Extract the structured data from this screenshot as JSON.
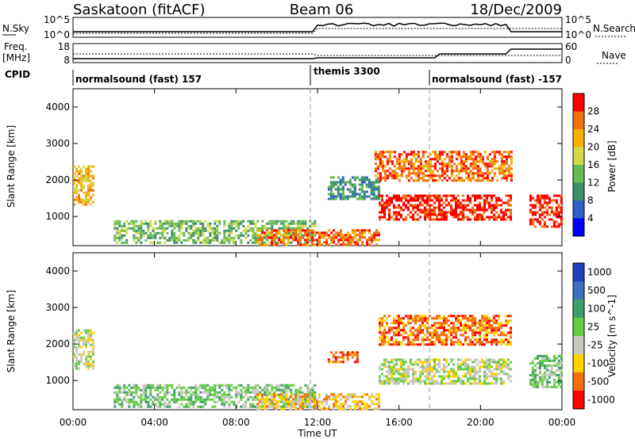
{
  "chart_data": {
    "type": "heatmap",
    "header": {
      "station": "Saskatoon (fitACF)",
      "beam": "Beam 06",
      "date": "18/Dec/2009"
    },
    "top_panels": {
      "nsky_label": "N.Sky",
      "freq_label_1": "Freq.",
      "freq_label_2": "[MHz]",
      "cpid_label": "CPID",
      "nsearch_label": "N.Search",
      "nave_label": "Nave",
      "nsky_ticks": [
        "10^5",
        "10^0"
      ],
      "freq_ticks": [
        "18",
        "8"
      ],
      "nsearch_ticks": [
        "10^5",
        "10^0"
      ],
      "nave_ticks": [
        "60",
        "0"
      ],
      "cpid_segments": [
        {
          "label": "normalsound (fast) 157",
          "start_hour": 0
        },
        {
          "label": "themis 3300",
          "start_hour": 12
        },
        {
          "label": "normalsound (fast) -157",
          "start_hour": 18
        }
      ]
    },
    "x_axis": {
      "label": "Time UT",
      "tick_labels": [
        "00:00",
        "04:00",
        "08:00",
        "12:00",
        "16:00",
        "20:00",
        "00:00"
      ],
      "range_hours": [
        0,
        24
      ],
      "tick_hours": [
        0,
        4,
        8,
        12,
        16,
        20,
        24
      ],
      "dashed_hours": [
        12,
        18
      ]
    },
    "y_axis": {
      "label": "Slant Range [km]",
      "tick_labels": [
        "1000",
        "2000",
        "3000",
        "4000"
      ],
      "tick_values": [
        1000,
        2000,
        3000,
        4000
      ],
      "range_km": [
        200,
        4500
      ]
    },
    "panels": [
      {
        "name": "power",
        "colorbar_label": "Power [dB]",
        "colorbar_ticks": [
          "4",
          "8",
          "12",
          "16",
          "20",
          "24",
          "28"
        ],
        "colors": [
          "#0000ff",
          "#2f5fc8",
          "#3a8f6a",
          "#66bb55",
          "#d2d84a",
          "#f5b000",
          "#f07010",
          "#ff0000"
        ],
        "regions": [
          {
            "start_hour": 0.0,
            "end_hour": 1.0,
            "range_km": [
              1300,
              2400
            ],
            "level": 5
          },
          {
            "start_hour": 2.0,
            "end_hour": 11.9,
            "range_km": [
              250,
              900
            ],
            "level": 3
          },
          {
            "start_hour": 9.0,
            "end_hour": 15.0,
            "range_km": [
              250,
              650
            ],
            "level": 6
          },
          {
            "start_hour": 12.5,
            "end_hour": 15.0,
            "range_km": [
              1500,
              2100
            ],
            "level": 2
          },
          {
            "start_hour": 14.8,
            "end_hour": 21.5,
            "range_km": [
              2000,
              2800
            ],
            "level": 6
          },
          {
            "start_hour": 15.0,
            "end_hour": 21.5,
            "range_km": [
              900,
              1600
            ],
            "level": 7
          },
          {
            "start_hour": 22.4,
            "end_hour": 24.0,
            "range_km": [
              700,
              1600
            ],
            "level": 7
          }
        ]
      },
      {
        "name": "velocity",
        "colorbar_label": "Velocity [m s^-1]",
        "colorbar_ticks": [
          "1000",
          "500",
          "100",
          "25",
          "-25",
          "-100",
          "-500",
          "-1000"
        ],
        "colors": [
          "#1f3fbf",
          "#3f6fbf",
          "#3f9f6a",
          "#66cc44",
          "#c8c8c0",
          "#ffd200",
          "#f07010",
          "#ff0000"
        ],
        "regions": [
          {
            "start_hour": 0.0,
            "end_hour": 1.0,
            "range_km": [
              1300,
              2400
            ],
            "level": 4
          },
          {
            "start_hour": 2.0,
            "end_hour": 11.9,
            "range_km": [
              250,
              900
            ],
            "level": 3
          },
          {
            "start_hour": 9.0,
            "end_hour": 15.0,
            "range_km": [
              250,
              650
            ],
            "level": 5
          },
          {
            "start_hour": 12.5,
            "end_hour": 14.0,
            "range_km": [
              1500,
              1800
            ],
            "level": 6
          },
          {
            "start_hour": 15.0,
            "end_hour": 21.5,
            "range_km": [
              2000,
              2800
            ],
            "level": 6
          },
          {
            "start_hour": 15.0,
            "end_hour": 21.5,
            "range_km": [
              900,
              1600
            ],
            "level": 4
          },
          {
            "start_hour": 22.4,
            "end_hour": 24.0,
            "range_km": [
              800,
              1700
            ],
            "level": 3
          }
        ]
      }
    ]
  }
}
